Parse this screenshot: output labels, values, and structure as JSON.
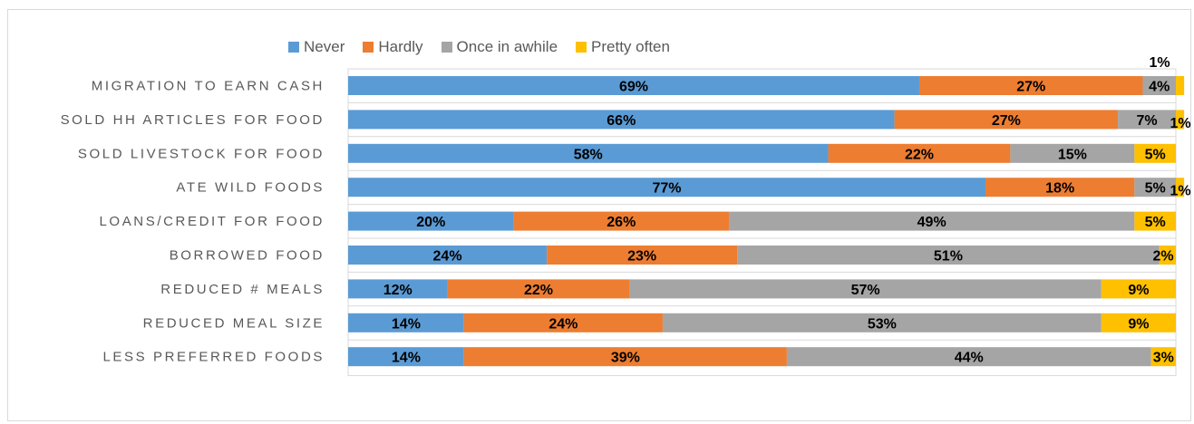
{
  "chart_data": {
    "type": "bar",
    "orientation": "horizontal",
    "stacked": "percent",
    "title": "",
    "xlabel": "",
    "ylabel": "",
    "xlim": [
      0,
      100
    ],
    "legend_position": "top",
    "grid": false,
    "categories": [
      "MIGRATION TO EARN CASH",
      "SOLD HH ARTICLES FOR FOOD",
      "SOLD LIVESTOCK FOR FOOD",
      "ATE WILD FOODS",
      "LOANS/CREDIT FOR FOOD",
      "BORROWED FOOD",
      "REDUCED # MEALS",
      "REDUCED MEAL SIZE",
      "LESS PREFERRED FOODS"
    ],
    "series": [
      {
        "name": "Never",
        "color": "#5b9bd5",
        "values": [
          69,
          66,
          58,
          77,
          20,
          24,
          12,
          14,
          14
        ],
        "labels": [
          "69%",
          "66%",
          "58%",
          "77%",
          "20%",
          "24%",
          "12%",
          "14%",
          "14%"
        ]
      },
      {
        "name": "Hardly",
        "color": "#ed7d31",
        "values": [
          27,
          27,
          22,
          18,
          26,
          23,
          22,
          24,
          39
        ],
        "labels": [
          "27%",
          "27%",
          "22%",
          "18%",
          "26%",
          "23%",
          "22%",
          "24%",
          "39%"
        ]
      },
      {
        "name": "Once in awhile",
        "color": "#a5a5a5",
        "values": [
          4,
          7,
          15,
          5,
          49,
          51,
          57,
          53,
          44
        ],
        "labels": [
          "4%",
          "7%",
          "15%",
          "5%",
          "49%",
          "51%",
          "57%",
          "53%",
          "44%"
        ]
      },
      {
        "name": "Pretty often",
        "color": "#ffc000",
        "values": [
          1,
          1,
          5,
          1,
          5,
          2,
          9,
          9,
          3
        ],
        "labels": [
          "1%",
          "1%",
          "5%",
          "1%",
          "5%",
          "2%",
          "9%",
          "9%",
          "3%"
        ]
      }
    ]
  }
}
